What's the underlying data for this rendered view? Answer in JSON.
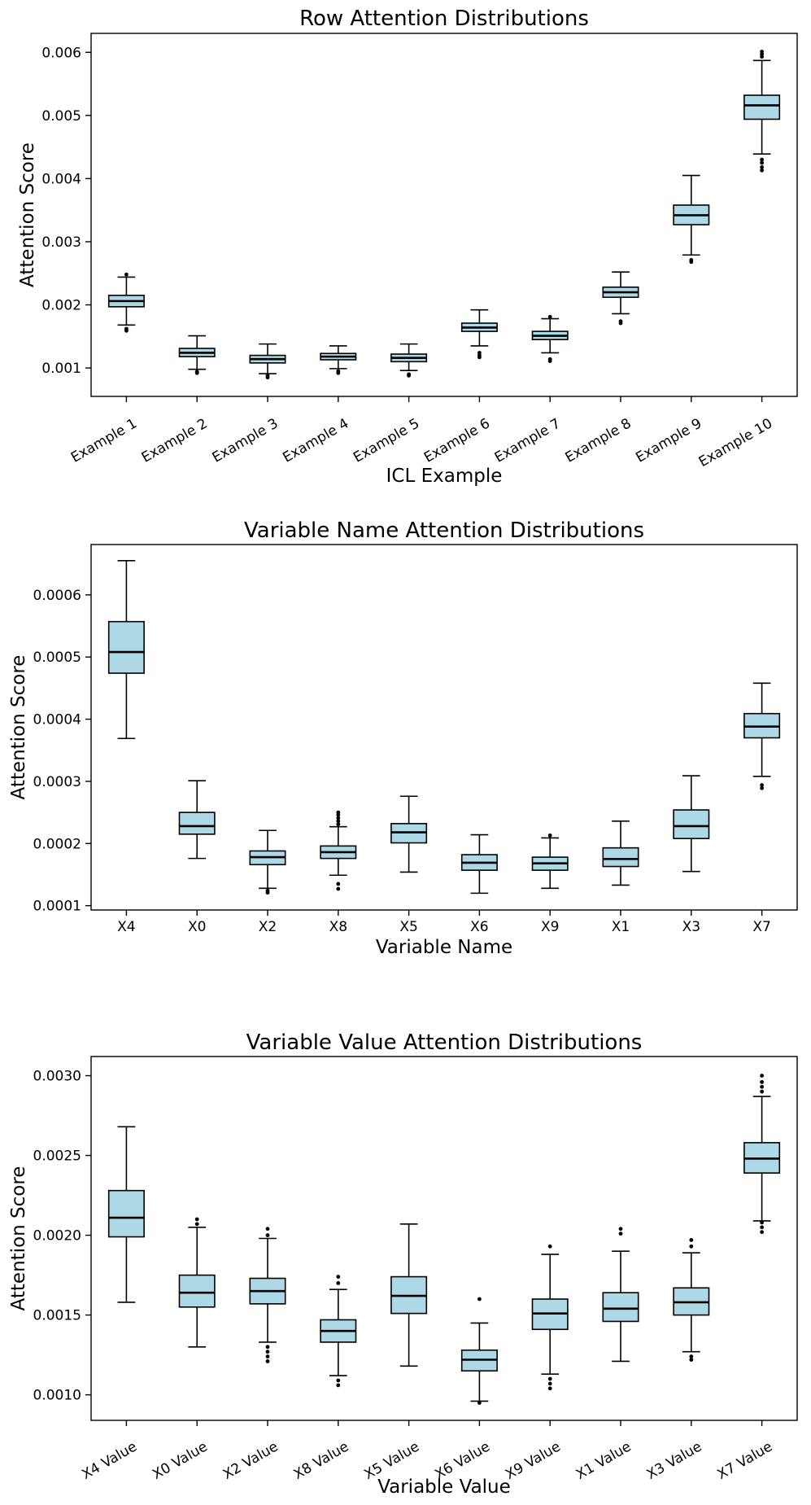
{
  "chart_data": [
    {
      "type": "box",
      "title": "Row Attention Distributions",
      "xlabel": "ICL Example",
      "ylabel": "Attention Score",
      "ylim": [
        0.00055,
        0.0063
      ],
      "yticks": [
        0.001,
        0.002,
        0.003,
        0.004,
        0.005,
        0.006
      ],
      "ytick_labels": [
        "0.001",
        "0.002",
        "0.003",
        "0.004",
        "0.005",
        "0.006"
      ],
      "xtick_rotation": 30,
      "categories": [
        "Example 1",
        "Example 2",
        "Example 3",
        "Example 4",
        "Example 5",
        "Example 6",
        "Example 7",
        "Example 8",
        "Example 9",
        "Example 10"
      ],
      "boxes": [
        {
          "whislo": 0.00168,
          "q1": 0.00197,
          "med": 0.00206,
          "q3": 0.00215,
          "whishi": 0.00244,
          "fliers": [
            0.00159,
            0.00162,
            0.00248
          ]
        },
        {
          "whislo": 0.00098,
          "q1": 0.00118,
          "med": 0.00124,
          "q3": 0.00131,
          "whishi": 0.00151,
          "fliers": [
            0.00092,
            0.00094
          ]
        },
        {
          "whislo": 0.00091,
          "q1": 0.00108,
          "med": 0.00114,
          "q3": 0.0012,
          "whishi": 0.00138,
          "fliers": [
            0.00085,
            0.00088
          ]
        },
        {
          "whislo": 0.00099,
          "q1": 0.00113,
          "med": 0.00118,
          "q3": 0.00123,
          "whishi": 0.00135,
          "fliers": [
            0.00092,
            0.00095
          ]
        },
        {
          "whislo": 0.00096,
          "q1": 0.0011,
          "med": 0.00116,
          "q3": 0.00122,
          "whishi": 0.00138,
          "fliers": [
            0.00088,
            0.0009
          ]
        },
        {
          "whislo": 0.00135,
          "q1": 0.00158,
          "med": 0.00164,
          "q3": 0.00171,
          "whishi": 0.00192,
          "fliers": [
            0.00117,
            0.0012,
            0.00124
          ]
        },
        {
          "whislo": 0.00124,
          "q1": 0.00145,
          "med": 0.00151,
          "q3": 0.00158,
          "whishi": 0.00178,
          "fliers": [
            0.00111,
            0.00114,
            0.00181
          ]
        },
        {
          "whislo": 0.00186,
          "q1": 0.00212,
          "med": 0.0022,
          "q3": 0.00228,
          "whishi": 0.00252,
          "fliers": [
            0.00171,
            0.00174
          ]
        },
        {
          "whislo": 0.00279,
          "q1": 0.00327,
          "med": 0.00342,
          "q3": 0.00358,
          "whishi": 0.00405,
          "fliers": [
            0.00268,
            0.00271
          ]
        },
        {
          "whislo": 0.00439,
          "q1": 0.00494,
          "med": 0.00516,
          "q3": 0.00532,
          "whishi": 0.00587,
          "fliers": [
            0.00413,
            0.00418,
            0.00425,
            0.0043,
            0.00593,
            0.00597,
            0.00601
          ]
        }
      ]
    },
    {
      "type": "box",
      "title": "Variable Name Attention Distributions",
      "xlabel": "Variable Name",
      "ylabel": "Attention Score",
      "ylim": [
        9.3e-05,
        0.000681
      ],
      "yticks": [
        0.0001,
        0.0002,
        0.0003,
        0.0004,
        0.0005,
        0.0006
      ],
      "ytick_labels": [
        "0.0001",
        "0.0002",
        "0.0003",
        "0.0004",
        "0.0005",
        "0.0006"
      ],
      "xtick_rotation": 0,
      "categories": [
        "X4",
        "X0",
        "X2",
        "X8",
        "X5",
        "X6",
        "X9",
        "X1",
        "X3",
        "X7"
      ],
      "boxes": [
        {
          "whislo": 0.000369,
          "q1": 0.000474,
          "med": 0.000508,
          "q3": 0.000557,
          "whishi": 0.000655,
          "fliers": []
        },
        {
          "whislo": 0.000176,
          "q1": 0.000215,
          "med": 0.000228,
          "q3": 0.00025,
          "whishi": 0.000301,
          "fliers": []
        },
        {
          "whislo": 0.000128,
          "q1": 0.000166,
          "med": 0.000178,
          "q3": 0.000188,
          "whishi": 0.000221,
          "fliers": [
            0.000121,
            0.000124
          ]
        },
        {
          "whislo": 0.000149,
          "q1": 0.000176,
          "med": 0.000186,
          "q3": 0.000196,
          "whishi": 0.000227,
          "fliers": [
            0.000127,
            0.000135,
            0.000231,
            0.000236,
            0.000241,
            0.000246,
            0.00025
          ]
        },
        {
          "whislo": 0.000154,
          "q1": 0.000201,
          "med": 0.000218,
          "q3": 0.000232,
          "whishi": 0.000276,
          "fliers": []
        },
        {
          "whislo": 0.00012,
          "q1": 0.000157,
          "med": 0.000169,
          "q3": 0.000182,
          "whishi": 0.000214,
          "fliers": []
        },
        {
          "whislo": 0.000128,
          "q1": 0.000157,
          "med": 0.000168,
          "q3": 0.000178,
          "whishi": 0.000209,
          "fliers": [
            0.000213
          ]
        },
        {
          "whislo": 0.000133,
          "q1": 0.000163,
          "med": 0.000175,
          "q3": 0.000193,
          "whishi": 0.000236,
          "fliers": []
        },
        {
          "whislo": 0.000155,
          "q1": 0.000208,
          "med": 0.000228,
          "q3": 0.000254,
          "whishi": 0.000309,
          "fliers": []
        },
        {
          "whislo": 0.000308,
          "q1": 0.00037,
          "med": 0.000388,
          "q3": 0.000409,
          "whishi": 0.000458,
          "fliers": [
            0.000289,
            0.000294
          ]
        }
      ]
    },
    {
      "type": "box",
      "title": "Variable Value Attention Distributions",
      "xlabel": "Variable Value",
      "ylabel": "Attention Score",
      "ylim": [
        0.00084,
        0.00312
      ],
      "yticks": [
        0.001,
        0.0015,
        0.002,
        0.0025,
        0.003
      ],
      "ytick_labels": [
        "0.0010",
        "0.0015",
        "0.0020",
        "0.0025",
        "0.0030"
      ],
      "xtick_rotation": 30,
      "categories": [
        "X4 Value",
        "X0 Value",
        "X2 Value",
        "X8 Value",
        "X5 Value",
        "X6 Value",
        "X9 Value",
        "X1 Value",
        "X3 Value",
        "X7 Value"
      ],
      "boxes": [
        {
          "whislo": 0.00158,
          "q1": 0.00199,
          "med": 0.00211,
          "q3": 0.00228,
          "whishi": 0.00268,
          "fliers": []
        },
        {
          "whislo": 0.0013,
          "q1": 0.00155,
          "med": 0.00164,
          "q3": 0.00175,
          "whishi": 0.00205,
          "fliers": [
            0.00207,
            0.0021
          ]
        },
        {
          "whislo": 0.00133,
          "q1": 0.00157,
          "med": 0.00165,
          "q3": 0.00173,
          "whishi": 0.00198,
          "fliers": [
            0.00121,
            0.00124,
            0.00127,
            0.0013,
            0.002,
            0.00204
          ]
        },
        {
          "whislo": 0.00112,
          "q1": 0.00133,
          "med": 0.0014,
          "q3": 0.00147,
          "whishi": 0.00166,
          "fliers": [
            0.00106,
            0.00109,
            0.0017,
            0.00174
          ]
        },
        {
          "whislo": 0.00118,
          "q1": 0.00151,
          "med": 0.00162,
          "q3": 0.00174,
          "whishi": 0.00207,
          "fliers": []
        },
        {
          "whislo": 0.00096,
          "q1": 0.00115,
          "med": 0.00122,
          "q3": 0.00128,
          "whishi": 0.00145,
          "fliers": [
            0.00095,
            0.0016
          ]
        },
        {
          "whislo": 0.00113,
          "q1": 0.00141,
          "med": 0.00151,
          "q3": 0.0016,
          "whishi": 0.00188,
          "fliers": [
            0.00104,
            0.00107,
            0.0011,
            0.00193
          ]
        },
        {
          "whislo": 0.00121,
          "q1": 0.00146,
          "med": 0.00154,
          "q3": 0.00164,
          "whishi": 0.0019,
          "fliers": [
            0.00201,
            0.00204
          ]
        },
        {
          "whislo": 0.00127,
          "q1": 0.0015,
          "med": 0.00158,
          "q3": 0.00167,
          "whishi": 0.00189,
          "fliers": [
            0.00122,
            0.00124,
            0.00193,
            0.00197
          ]
        },
        {
          "whislo": 0.00209,
          "q1": 0.00239,
          "med": 0.00248,
          "q3": 0.00258,
          "whishi": 0.00287,
          "fliers": [
            0.00202,
            0.00205,
            0.00208,
            0.0029,
            0.00293,
            0.00296,
            0.003
          ]
        }
      ]
    }
  ]
}
